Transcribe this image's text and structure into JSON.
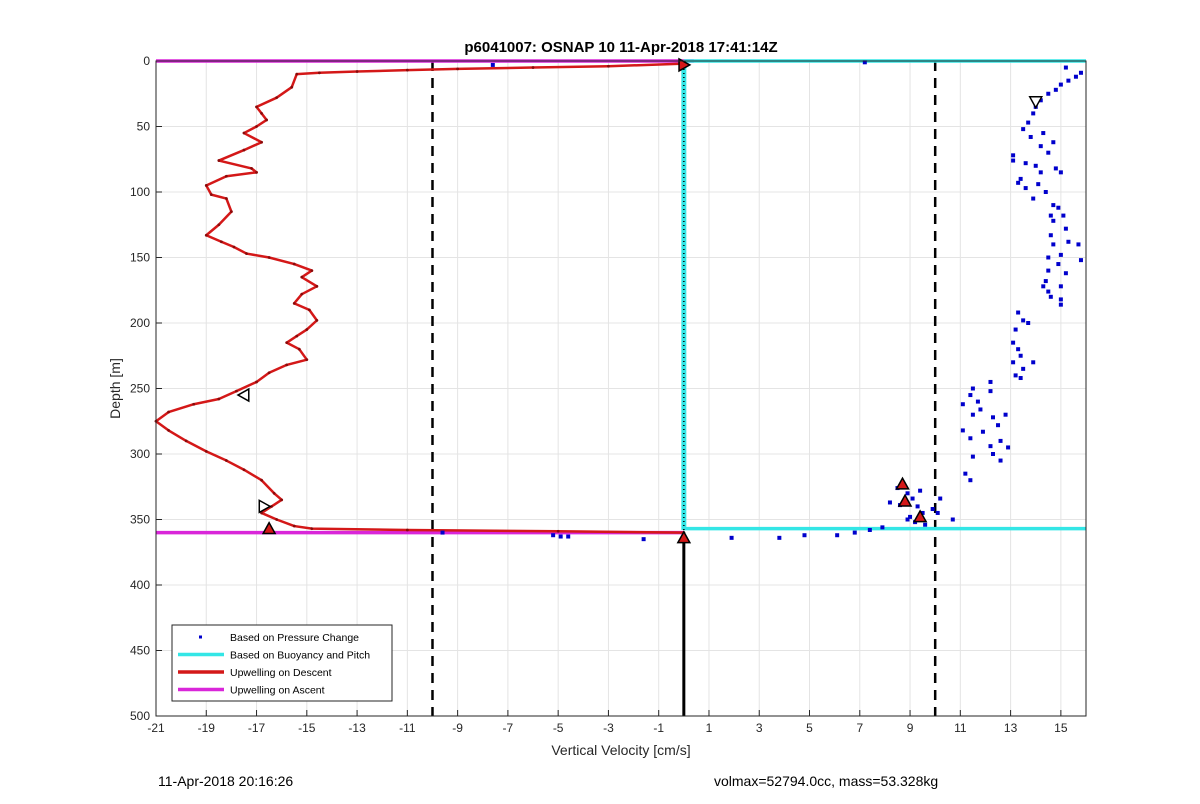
{
  "chart_data": {
    "type": "line",
    "title": "p6041007: OSNAP 10 11-Apr-2018 17:41:14Z",
    "xlabel": "Vertical Velocity [cm/s]",
    "ylabel": "Depth [m]",
    "xlim": [
      -21,
      16
    ],
    "ylim": [
      500,
      0
    ],
    "y_reversed": true,
    "grid": true,
    "xticks": [
      -21,
      -19,
      -17,
      -15,
      -13,
      -11,
      -9,
      -7,
      -5,
      -3,
      -1,
      1,
      3,
      5,
      7,
      9,
      11,
      13,
      15
    ],
    "yticks": [
      0,
      50,
      100,
      150,
      200,
      250,
      300,
      350,
      400,
      450,
      500
    ],
    "legend_position": "bottom-left",
    "legend": [
      {
        "label": "Based on Pressure Change",
        "color": "#0000cc",
        "style": "dots"
      },
      {
        "label": "Based on Buoyancy and Pitch",
        "color": "#33e6e6",
        "style": "line"
      },
      {
        "label": "Upwelling on Descent",
        "color": "#d41818",
        "style": "line"
      },
      {
        "label": "Upwelling on Ascent",
        "color": "#d926d9",
        "style": "line"
      }
    ],
    "reference_lines": {
      "dashed_x": [
        -10,
        10
      ],
      "zero_line_x": 0,
      "color": "#000000"
    },
    "series": [
      {
        "name": "Upwelling on Descent",
        "color": "#d41818",
        "points": [
          [
            0,
            2
          ],
          [
            -3,
            4
          ],
          [
            -6,
            5
          ],
          [
            -9,
            6
          ],
          [
            -11,
            7
          ],
          [
            -13,
            8
          ],
          [
            -14.5,
            9
          ],
          [
            -15.4,
            10
          ],
          [
            -15.6,
            20
          ],
          [
            -16.2,
            28
          ],
          [
            -17,
            35
          ],
          [
            -16.8,
            40
          ],
          [
            -16.6,
            45
          ],
          [
            -17,
            50
          ],
          [
            -17.5,
            55
          ],
          [
            -16.8,
            62
          ],
          [
            -17.5,
            68
          ],
          [
            -18.5,
            76
          ],
          [
            -17.2,
            82
          ],
          [
            -17,
            85
          ],
          [
            -18.2,
            88
          ],
          [
            -19,
            95
          ],
          [
            -18.8,
            102
          ],
          [
            -18.2,
            105
          ],
          [
            -18,
            115
          ],
          [
            -18.5,
            125
          ],
          [
            -19,
            133
          ],
          [
            -18.4,
            138
          ],
          [
            -17.9,
            142
          ],
          [
            -17.4,
            147
          ],
          [
            -16.5,
            150
          ],
          [
            -15.5,
            155
          ],
          [
            -14.8,
            160
          ],
          [
            -15.2,
            165
          ],
          [
            -14.6,
            172
          ],
          [
            -15.2,
            178
          ],
          [
            -15.5,
            185
          ],
          [
            -14.9,
            190
          ],
          [
            -14.6,
            198
          ],
          [
            -15,
            205
          ],
          [
            -15.4,
            210
          ],
          [
            -15.8,
            215
          ],
          [
            -15.3,
            220
          ],
          [
            -15,
            228
          ],
          [
            -15.8,
            232
          ],
          [
            -16.5,
            238
          ],
          [
            -17,
            245
          ],
          [
            -17.8,
            252
          ],
          [
            -18.5,
            258
          ],
          [
            -19.5,
            262
          ],
          [
            -20.5,
            268
          ],
          [
            -21,
            275
          ],
          [
            -20.5,
            282
          ],
          [
            -19.8,
            290
          ],
          [
            -19,
            298
          ],
          [
            -18.2,
            305
          ],
          [
            -17.5,
            312
          ],
          [
            -16.8,
            320
          ],
          [
            -16.3,
            330
          ],
          [
            -16,
            335
          ],
          [
            -16.4,
            340
          ],
          [
            -16.8,
            345
          ],
          [
            -16.2,
            350
          ],
          [
            -15.5,
            355
          ],
          [
            -14.8,
            357
          ],
          [
            -11,
            358
          ],
          [
            -5,
            359
          ],
          [
            0,
            360
          ]
        ]
      },
      {
        "name": "Upwelling on Ascent",
        "color": "#d926d9",
        "segments": [
          {
            "x": [
              -21,
              0.4
            ],
            "y": 0
          },
          {
            "x": [
              -21,
              0
            ],
            "y": 360
          }
        ]
      },
      {
        "name": "Based on Buoyancy and Pitch",
        "color": "#33e6e6",
        "segments": [
          {
            "x": [
              0,
              16
            ],
            "y": 0
          },
          {
            "x": [
              0,
              16
            ],
            "y": 357
          },
          {
            "x": 0,
            "y": [
              0,
              358
            ]
          }
        ]
      },
      {
        "name": "Based on Pressure Change",
        "color": "#0000cc",
        "points": [
          [
            15.2,
            5
          ],
          [
            15.8,
            9
          ],
          [
            15.6,
            12
          ],
          [
            15.3,
            15
          ],
          [
            15,
            18
          ],
          [
            14.8,
            22
          ],
          [
            14.5,
            25
          ],
          [
            14.2,
            30
          ],
          [
            14,
            35
          ],
          [
            13.9,
            40
          ],
          [
            13.7,
            47
          ],
          [
            13.5,
            52
          ],
          [
            13.8,
            58
          ],
          [
            14.3,
            55
          ],
          [
            14.7,
            62
          ],
          [
            14.2,
            65
          ],
          [
            14.5,
            70
          ],
          [
            13.1,
            72
          ],
          [
            13.1,
            76
          ],
          [
            13.6,
            78
          ],
          [
            14,
            80
          ],
          [
            14.8,
            82
          ],
          [
            14.2,
            85
          ],
          [
            15,
            85
          ],
          [
            13.4,
            90
          ],
          [
            13.3,
            93
          ],
          [
            14.1,
            94
          ],
          [
            13.6,
            97
          ],
          [
            14.4,
            100
          ],
          [
            13.9,
            105
          ],
          [
            14.7,
            110
          ],
          [
            14.9,
            112
          ],
          [
            14.6,
            118
          ],
          [
            15.1,
            118
          ],
          [
            14.7,
            122
          ],
          [
            15.2,
            128
          ],
          [
            14.6,
            133
          ],
          [
            15.3,
            138
          ],
          [
            14.7,
            140
          ],
          [
            15.7,
            140
          ],
          [
            15,
            148
          ],
          [
            14.5,
            150
          ],
          [
            15.8,
            152
          ],
          [
            14.9,
            155
          ],
          [
            14.5,
            160
          ],
          [
            15.2,
            162
          ],
          [
            14.4,
            168
          ],
          [
            15,
            172
          ],
          [
            14.3,
            172
          ],
          [
            14.5,
            176
          ],
          [
            14.6,
            180
          ],
          [
            15,
            182
          ],
          [
            15,
            186
          ],
          [
            13.3,
            192
          ],
          [
            13.5,
            198
          ],
          [
            13.2,
            205
          ],
          [
            13.7,
            200
          ],
          [
            13.1,
            215
          ],
          [
            13.3,
            220
          ],
          [
            13.4,
            225
          ],
          [
            13.1,
            230
          ],
          [
            13.9,
            230
          ],
          [
            13.5,
            235
          ],
          [
            13.2,
            240
          ],
          [
            13.4,
            242
          ],
          [
            12.2,
            245
          ],
          [
            11.5,
            250
          ],
          [
            12.2,
            252
          ],
          [
            11.4,
            255
          ],
          [
            11.7,
            260
          ],
          [
            11.1,
            262
          ],
          [
            11.8,
            266
          ],
          [
            11.5,
            270
          ],
          [
            12.3,
            272
          ],
          [
            12.8,
            270
          ],
          [
            12.5,
            278
          ],
          [
            11.1,
            282
          ],
          [
            11.9,
            283
          ],
          [
            11.4,
            288
          ],
          [
            12.6,
            290
          ],
          [
            12.2,
            294
          ],
          [
            12.9,
            295
          ],
          [
            12.3,
            300
          ],
          [
            11.5,
            302
          ],
          [
            12.6,
            305
          ],
          [
            11.2,
            315
          ],
          [
            11.4,
            320
          ],
          [
            8.5,
            326
          ],
          [
            8.9,
            330
          ],
          [
            9.4,
            328
          ],
          [
            9.1,
            334
          ],
          [
            10.2,
            334
          ],
          [
            8.2,
            337
          ],
          [
            8.6,
            339
          ],
          [
            9.3,
            340
          ],
          [
            9.9,
            342
          ],
          [
            9.5,
            345
          ],
          [
            10.1,
            345
          ],
          [
            9,
            348
          ],
          [
            8.9,
            350
          ],
          [
            10.7,
            350
          ],
          [
            9.2,
            352
          ],
          [
            9.6,
            354
          ],
          [
            7.9,
            356
          ],
          [
            7.4,
            358
          ],
          [
            6.8,
            360
          ],
          [
            6.1,
            362
          ],
          [
            4.8,
            362
          ],
          [
            3.8,
            364
          ],
          [
            1.9,
            364
          ],
          [
            -1.6,
            365
          ],
          [
            -4.6,
            363
          ],
          [
            -4.9,
            363
          ],
          [
            -5.2,
            362
          ],
          [
            -9.6,
            360
          ],
          [
            -7.6,
            3
          ],
          [
            7.2,
            1
          ]
        ]
      }
    ],
    "markers": [
      {
        "shape": "triangle-right",
        "fill": "#d41818",
        "x": 0,
        "y": 3
      },
      {
        "shape": "triangle-down",
        "fill": "#ffffff",
        "x": 14,
        "y": 31
      },
      {
        "shape": "triangle-left",
        "fill": "#ffffff",
        "x": -17.5,
        "y": 255
      },
      {
        "shape": "triangle-right",
        "fill": "#ffffff",
        "x": -16.7,
        "y": 340
      },
      {
        "shape": "triangle-up",
        "fill": "#d41818",
        "x": -16.5,
        "y": 357
      },
      {
        "shape": "triangle-up",
        "fill": "#d41818",
        "x": 8.7,
        "y": 323
      },
      {
        "shape": "triangle-up",
        "fill": "#d41818",
        "x": 8.8,
        "y": 336
      },
      {
        "shape": "triangle-up",
        "fill": "#d41818",
        "x": 9.4,
        "y": 348
      },
      {
        "shape": "triangle-up",
        "fill": "#d41818",
        "x": 0,
        "y": 364
      }
    ],
    "zero_velocity_path": {
      "color": "#000000",
      "dotted_y": [
        0,
        360
      ],
      "solid_y": [
        360,
        500
      ]
    }
  },
  "footer": {
    "timestamp": "11-Apr-2018 20:16:26",
    "stats": "volmax=52794.0cc, mass=53.328kg"
  }
}
